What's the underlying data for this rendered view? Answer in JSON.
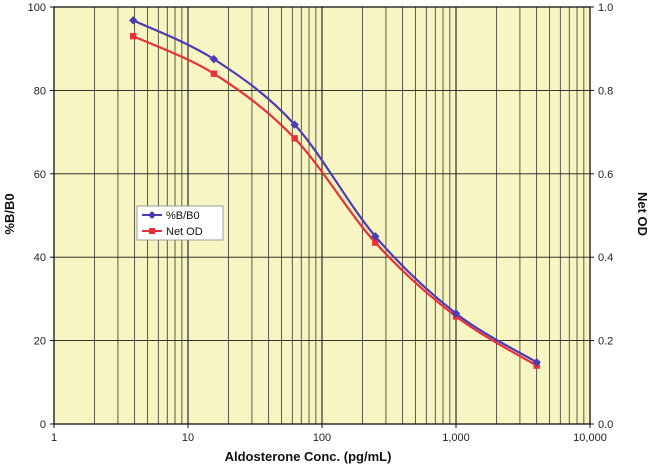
{
  "chart_data": {
    "type": "line",
    "xlabel": "Aldosterone Conc. (pg/mL)",
    "ylabel": "%B/B0",
    "y2label": "Net OD",
    "x_scale": "log",
    "xlim": [
      1,
      10000
    ],
    "ylim": [
      0,
      100
    ],
    "y2lim": [
      0.0,
      1.0
    ],
    "x_ticks": [
      "1",
      "10",
      "100",
      "1,000",
      "10,000"
    ],
    "y_ticks": [
      "0",
      "20",
      "40",
      "60",
      "80",
      "100"
    ],
    "y2_ticks": [
      "0.0",
      "0.2",
      "0.4",
      "0.6",
      "0.8",
      "1.0"
    ],
    "grid": true,
    "legend_position": "left-center",
    "background_color": "#f7f5c2",
    "series": [
      {
        "name": "%B/B0",
        "axis": "left",
        "color": "#4b3cb4",
        "marker": "diamond",
        "x": [
          3.9,
          15.6,
          62.5,
          250,
          1000,
          4000
        ],
        "y": [
          96.8,
          87.5,
          71.8,
          45.0,
          26.5,
          14.8
        ]
      },
      {
        "name": "Net OD",
        "axis": "right",
        "color": "#e8303a",
        "marker": "square",
        "x": [
          3.9,
          15.6,
          62.5,
          250,
          1000,
          4000
        ],
        "y": [
          0.93,
          0.84,
          0.685,
          0.435,
          0.258,
          0.14
        ]
      }
    ]
  }
}
